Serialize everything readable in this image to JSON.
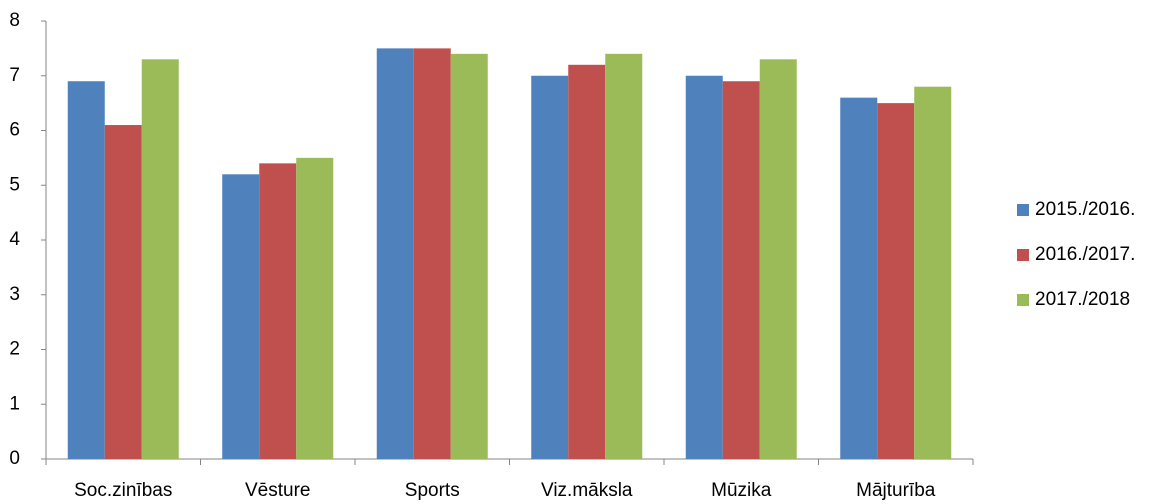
{
  "chart_data": {
    "type": "bar",
    "categories": [
      "Soc.zinības",
      "Vēsture",
      "Sports",
      "Viz.māksla",
      "Mūzika",
      "Mājturība"
    ],
    "series": [
      {
        "name": "2015./2016.",
        "color": "#4f81bd",
        "values": [
          6.9,
          5.2,
          7.5,
          7.0,
          7.0,
          6.6
        ]
      },
      {
        "name": "2016./2017.",
        "color": "#c0504d",
        "values": [
          6.1,
          5.4,
          7.5,
          7.2,
          6.9,
          6.5
        ]
      },
      {
        "name": "2017./2018",
        "color": "#9bbb59",
        "values": [
          7.3,
          5.5,
          7.4,
          7.4,
          7.3,
          6.8
        ]
      }
    ],
    "ylim": [
      0,
      8
    ],
    "yticks": [
      0,
      1,
      2,
      3,
      4,
      5,
      6,
      7,
      8
    ],
    "grid": false,
    "legend": "right"
  }
}
